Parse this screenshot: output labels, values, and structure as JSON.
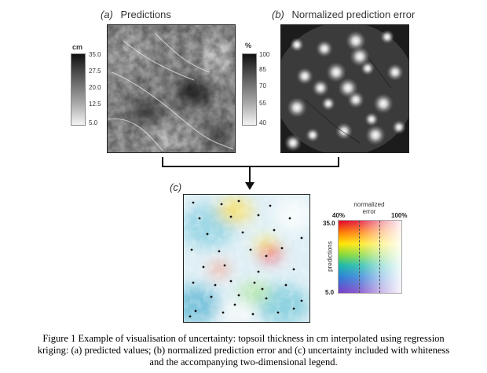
{
  "panel_a": {
    "letter": "(a)",
    "title": "Predictions",
    "unit": "cm",
    "ticks": [
      "35.0",
      "27.5",
      "20.0",
      "12.5",
      "5.0"
    ]
  },
  "panel_b": {
    "letter": "(b)",
    "title": "Normalized prediction error",
    "unit": "%",
    "ticks": [
      "100",
      "85",
      "70",
      "55",
      "40"
    ]
  },
  "panel_c": {
    "letter": "(c)"
  },
  "legend2d": {
    "header_line1": "normalized",
    "header_line2": "error",
    "x_min": "40%",
    "x_max": "100%",
    "y_axis": "predictions",
    "y_max": "35.0",
    "y_min": "5.0"
  },
  "caption": {
    "line1": "Figure 1 Example of visualisation of uncertainty: topsoil thickness in cm interpolated using regression",
    "line2": "kriging: (a) predicted values; (b) normalized prediction error and (c) uncertainty included with whiteness",
    "line3": "and the accompanying two-dimensional legend."
  },
  "colors": {
    "frame": "#222222",
    "point": "#111111"
  }
}
